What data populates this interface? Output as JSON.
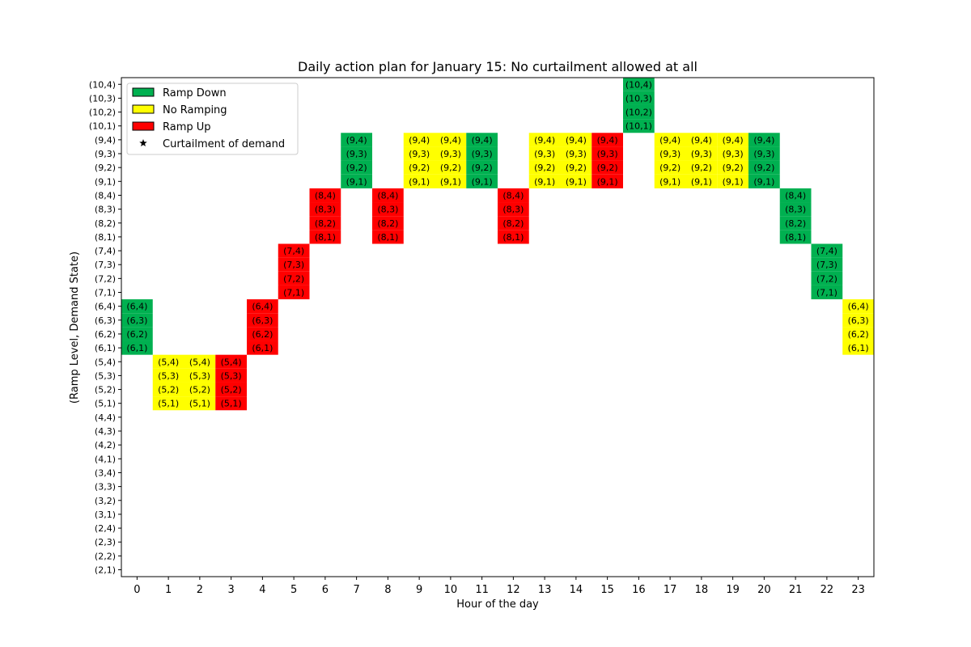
{
  "chart_data": {
    "type": "heatmap",
    "title": "Daily action plan for January 15: No curtailment allowed at all",
    "xlabel": "Hour of the day",
    "ylabel": "(Ramp Level, Demand State)",
    "x": [
      0,
      1,
      2,
      3,
      4,
      5,
      6,
      7,
      8,
      9,
      10,
      11,
      12,
      13,
      14,
      15,
      16,
      17,
      18,
      19,
      20,
      21,
      22,
      23
    ],
    "y_states": [
      "(2,1)",
      "(2,2)",
      "(2,3)",
      "(2,4)",
      "(3,1)",
      "(3,2)",
      "(3,3)",
      "(3,4)",
      "(4,1)",
      "(4,2)",
      "(4,3)",
      "(4,4)",
      "(5,1)",
      "(5,2)",
      "(5,3)",
      "(5,4)",
      "(6,1)",
      "(6,2)",
      "(6,3)",
      "(6,4)",
      "(7,1)",
      "(7,2)",
      "(7,3)",
      "(7,4)",
      "(8,1)",
      "(8,2)",
      "(8,3)",
      "(8,4)",
      "(9,1)",
      "(9,2)",
      "(9,3)",
      "(9,4)",
      "(10,1)",
      "(10,2)",
      "(10,3)",
      "(10,4)"
    ],
    "legend": [
      {
        "label": "Ramp Down",
        "color": "#00b050",
        "marker": "box"
      },
      {
        "label": "No Ramping",
        "color": "#ffff00",
        "marker": "box"
      },
      {
        "label": "Ramp Up",
        "color": "#ff0000",
        "marker": "box"
      },
      {
        "label": "Curtailment of demand",
        "color": "#000000",
        "marker": "star"
      }
    ],
    "legend_position": "top-left",
    "plan": [
      {
        "hour": 0,
        "ramp_level": 6,
        "action": "Ramp Down"
      },
      {
        "hour": 1,
        "ramp_level": 5,
        "action": "No Ramping"
      },
      {
        "hour": 2,
        "ramp_level": 5,
        "action": "No Ramping"
      },
      {
        "hour": 3,
        "ramp_level": 5,
        "action": "Ramp Up"
      },
      {
        "hour": 4,
        "ramp_level": 6,
        "action": "Ramp Up"
      },
      {
        "hour": 5,
        "ramp_level": 7,
        "action": "Ramp Up"
      },
      {
        "hour": 6,
        "ramp_level": 8,
        "action": "Ramp Up"
      },
      {
        "hour": 7,
        "ramp_level": 9,
        "action": "Ramp Down"
      },
      {
        "hour": 8,
        "ramp_level": 8,
        "action": "Ramp Up"
      },
      {
        "hour": 9,
        "ramp_level": 9,
        "action": "No Ramping"
      },
      {
        "hour": 10,
        "ramp_level": 9,
        "action": "No Ramping"
      },
      {
        "hour": 11,
        "ramp_level": 9,
        "action": "Ramp Down"
      },
      {
        "hour": 12,
        "ramp_level": 8,
        "action": "Ramp Up"
      },
      {
        "hour": 13,
        "ramp_level": 9,
        "action": "No Ramping"
      },
      {
        "hour": 14,
        "ramp_level": 9,
        "action": "No Ramping"
      },
      {
        "hour": 15,
        "ramp_level": 9,
        "action": "Ramp Up"
      },
      {
        "hour": 16,
        "ramp_level": 10,
        "action": "Ramp Down"
      },
      {
        "hour": 17,
        "ramp_level": 9,
        "action": "No Ramping"
      },
      {
        "hour": 18,
        "ramp_level": 9,
        "action": "No Ramping"
      },
      {
        "hour": 19,
        "ramp_level": 9,
        "action": "No Ramping"
      },
      {
        "hour": 20,
        "ramp_level": 9,
        "action": "Ramp Down"
      },
      {
        "hour": 21,
        "ramp_level": 8,
        "action": "Ramp Down"
      },
      {
        "hour": 22,
        "ramp_level": 7,
        "action": "Ramp Down"
      },
      {
        "hour": 23,
        "ramp_level": 6,
        "action": "No Ramping"
      }
    ],
    "demand_states": [
      1,
      2,
      3,
      4
    ]
  }
}
